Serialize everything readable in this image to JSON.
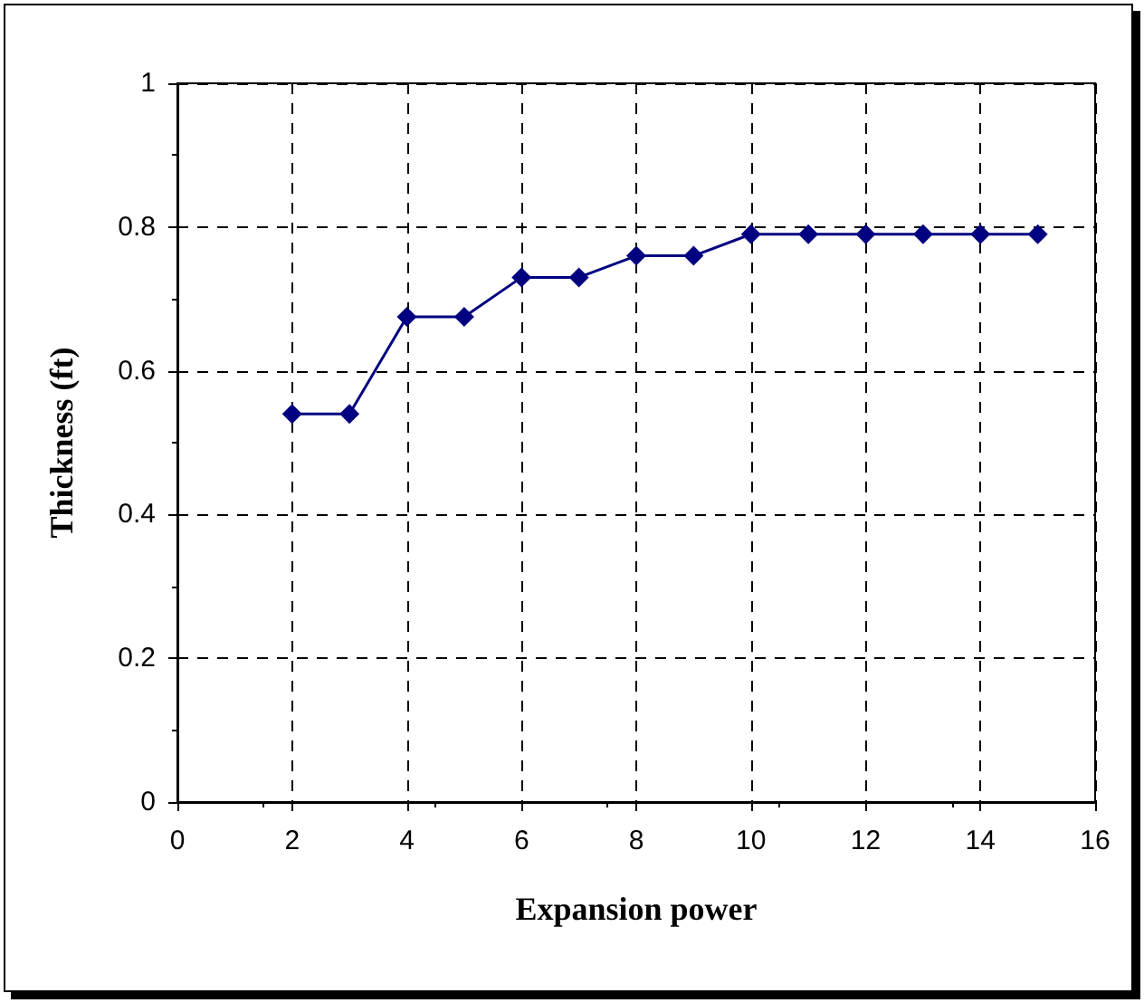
{
  "chart_data": {
    "type": "line",
    "xlabel": "Expansion power",
    "ylabel": "Thickness (ft)",
    "x": [
      2,
      3,
      4,
      5,
      6,
      7,
      8,
      9,
      10,
      11,
      12,
      13,
      14,
      15
    ],
    "series": [
      {
        "color": "#000080",
        "values": [
          0.54,
          0.54,
          0.675,
          0.675,
          0.73,
          0.73,
          0.76,
          0.76,
          0.79,
          0.79,
          0.79,
          0.79,
          0.79,
          0.79
        ]
      }
    ],
    "xlim": [
      0,
      16
    ],
    "xticks": [
      0,
      2,
      4,
      6,
      8,
      10,
      12,
      14,
      16
    ],
    "ylim": [
      0,
      1
    ],
    "yticks": [
      0,
      0.2,
      0.4,
      0.6,
      0.8,
      1
    ],
    "grid": true,
    "marker": "diamond",
    "line_style": "solid"
  }
}
